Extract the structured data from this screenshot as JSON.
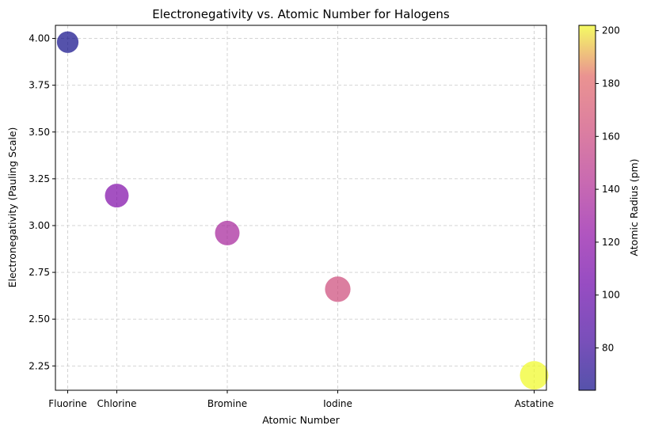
{
  "chart_data": {
    "type": "scatter",
    "title": "Electronegativity vs. Atomic Number for Halogens",
    "xlabel": "Atomic Number",
    "ylabel": "Electronegativity (Pauling Scale)",
    "colorbar_label": "Atomic Radius (pm)",
    "grid": true,
    "ylim": [
      2.12,
      4.07
    ],
    "xlim": [
      7.0,
      87.0
    ],
    "x_ticks": [
      {
        "value": 9,
        "label": "Fluorine"
      },
      {
        "value": 17,
        "label": "Chlorine"
      },
      {
        "value": 35,
        "label": "Bromine"
      },
      {
        "value": 53,
        "label": "Iodine"
      },
      {
        "value": 85,
        "label": "Astatine"
      }
    ],
    "y_ticks": [
      "2.25",
      "2.50",
      "2.75",
      "3.00",
      "3.25",
      "3.50",
      "3.75",
      "4.00"
    ],
    "colorbar_ticks": [
      "80",
      "100",
      "120",
      "140",
      "160",
      "180",
      "200"
    ],
    "colorbar_range": [
      64,
      202
    ],
    "colormap": "plasma",
    "points": [
      {
        "name": "Fluorine",
        "x": 9,
        "y": 3.98,
        "radius_pm": 64
      },
      {
        "name": "Chlorine",
        "x": 17,
        "y": 3.16,
        "radius_pm": 99
      },
      {
        "name": "Bromine",
        "x": 35,
        "y": 2.96,
        "radius_pm": 114
      },
      {
        "name": "Iodine",
        "x": 53,
        "y": 2.66,
        "radius_pm": 133
      },
      {
        "name": "Astatine",
        "x": 85,
        "y": 2.2,
        "radius_pm": 202
      }
    ]
  }
}
